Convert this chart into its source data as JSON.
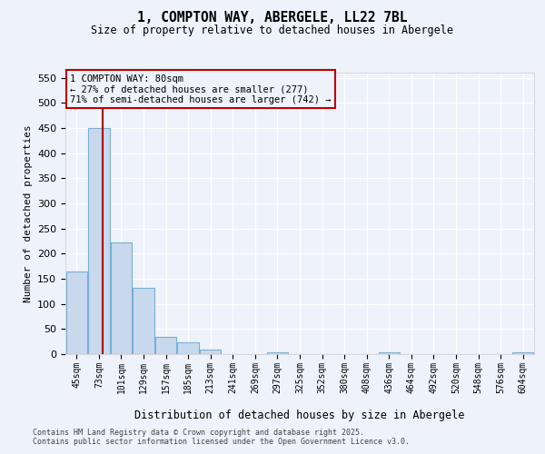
{
  "title": "1, COMPTON WAY, ABERGELE, LL22 7BL",
  "subtitle": "Size of property relative to detached houses in Abergele",
  "xlabel": "Distribution of detached houses by size in Abergele",
  "ylabel": "Number of detached properties",
  "categories": [
    "45sqm",
    "73sqm",
    "101sqm",
    "129sqm",
    "157sqm",
    "185sqm",
    "213sqm",
    "241sqm",
    "269sqm",
    "297sqm",
    "325sqm",
    "352sqm",
    "380sqm",
    "408sqm",
    "436sqm",
    "464sqm",
    "492sqm",
    "520sqm",
    "548sqm",
    "576sqm",
    "604sqm"
  ],
  "values": [
    165,
    449,
    222,
    132,
    35,
    23,
    9,
    0,
    0,
    4,
    0,
    0,
    0,
    0,
    3,
    0,
    0,
    0,
    0,
    0,
    3
  ],
  "bar_color": "#c8d9ee",
  "bar_edgecolor": "#7aafd4",
  "vline_color": "#aa0000",
  "vline_position": 1.15,
  "annotation_line1": "1 COMPTON WAY: 80sqm",
  "annotation_line2": "← 27% of detached houses are smaller (277)",
  "annotation_line3": "71% of semi-detached houses are larger (742) →",
  "annotation_box_edgecolor": "#bb0000",
  "ylim": [
    0,
    560
  ],
  "yticks": [
    0,
    50,
    100,
    150,
    200,
    250,
    300,
    350,
    400,
    450,
    500,
    550
  ],
  "bg_color": "#eef2fa",
  "grid_color": "#ffffff",
  "footer_line1": "Contains HM Land Registry data © Crown copyright and database right 2025.",
  "footer_line2": "Contains public sector information licensed under the Open Government Licence v3.0."
}
